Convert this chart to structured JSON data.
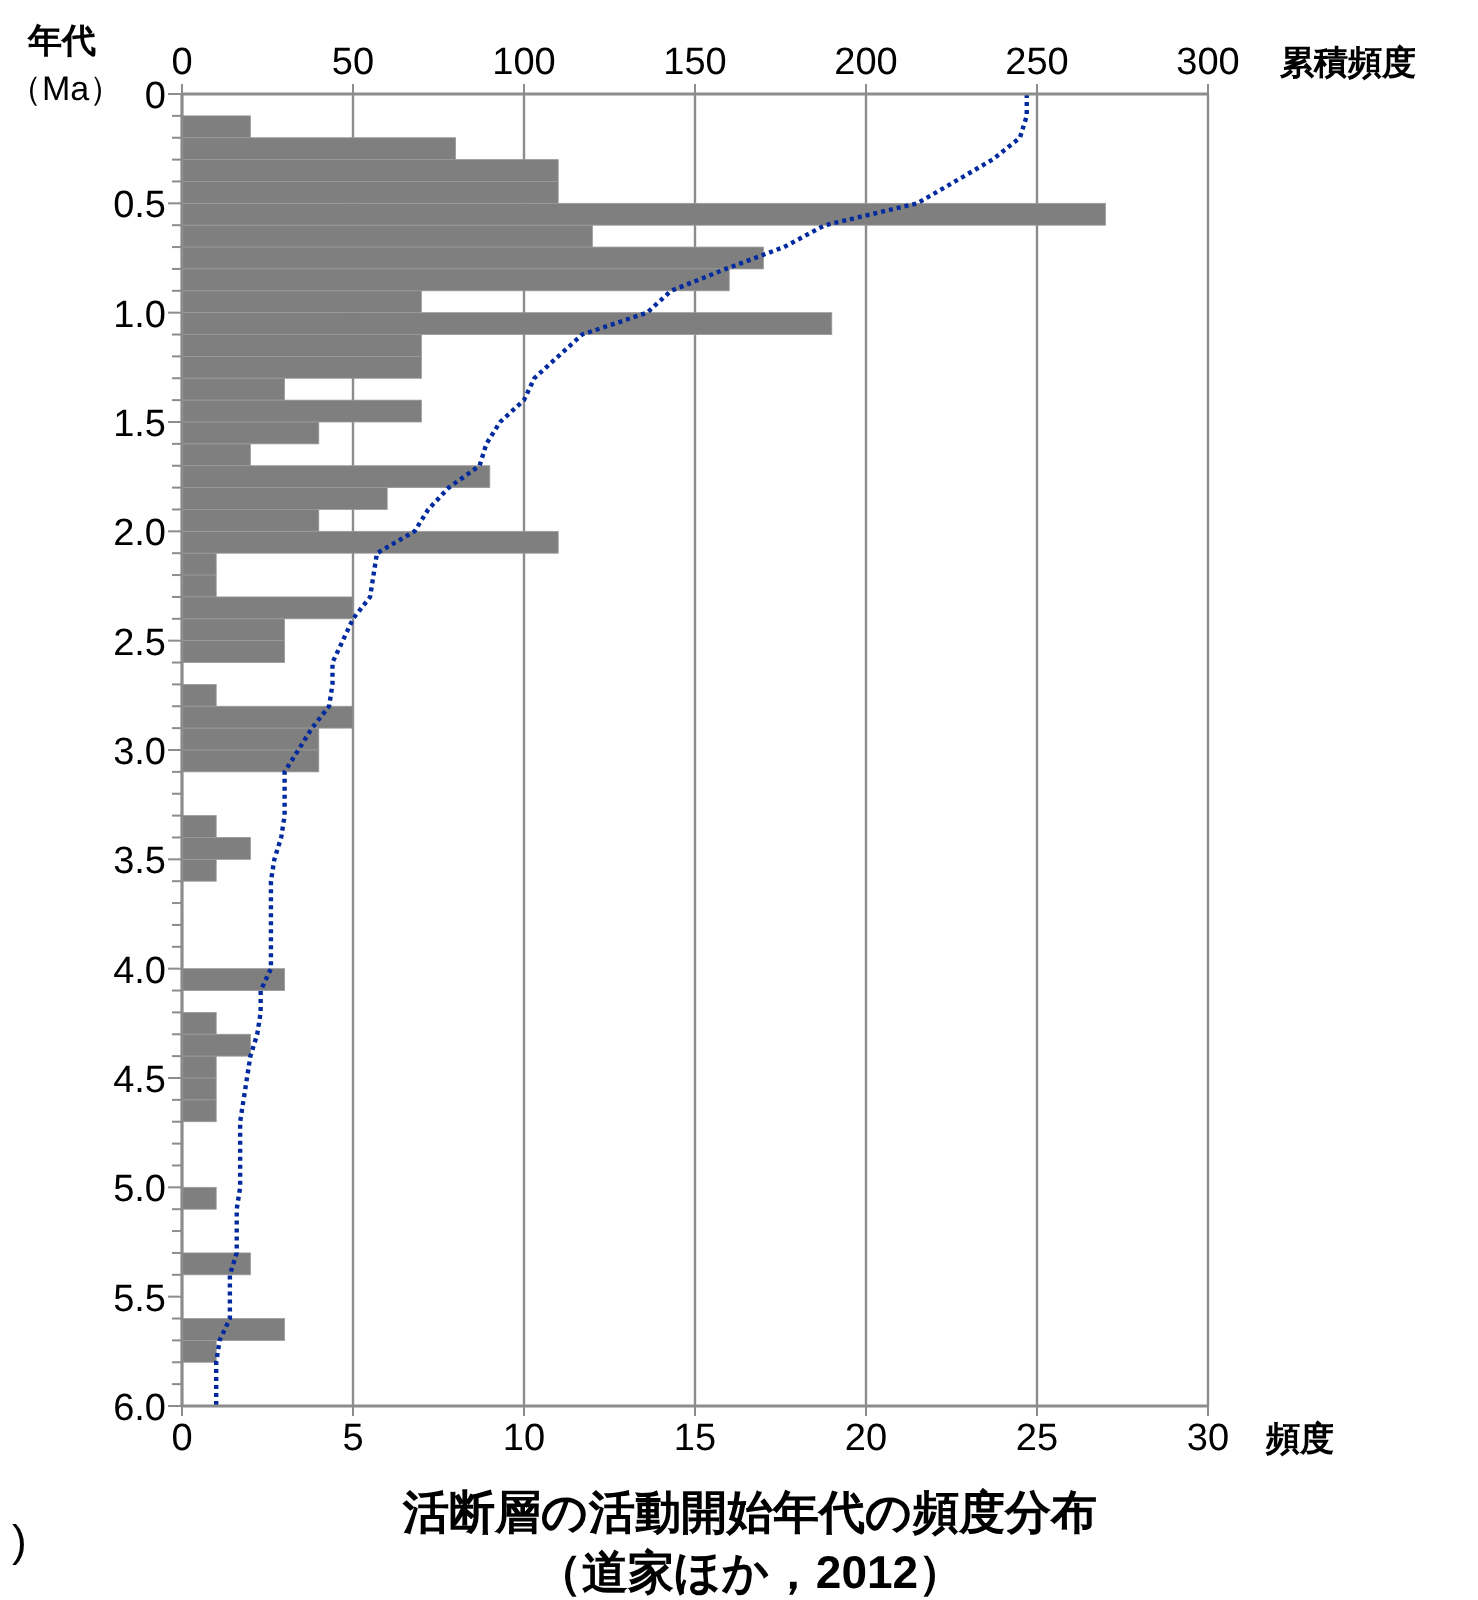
{
  "chart_data": {
    "type": "histogram",
    "orientation": "horizontal",
    "title": "活断層の活動開始年代の頻度分布",
    "subtitle": "（道家ほか，2012）",
    "xlabel": "頻度",
    "x2label": "累積頻度",
    "ylabel": "年代（Ma）",
    "annotations": [
      ")"
    ],
    "bins": [
      0,
      0.1,
      0.2,
      0.3,
      0.4,
      0.5,
      0.6,
      0.7,
      0.8,
      0.9,
      1.0,
      1.1,
      1.2,
      1.3,
      1.4,
      1.5,
      1.6,
      1.7,
      1.8,
      1.9,
      2.0,
      2.1,
      2.2,
      2.3,
      2.4,
      2.5,
      2.6,
      2.7,
      2.8,
      2.9,
      3.0,
      3.1,
      3.2,
      3.3,
      3.4,
      3.5,
      3.6,
      3.7,
      3.8,
      3.9,
      4.0,
      4.1,
      4.2,
      4.3,
      4.4,
      4.5,
      4.6,
      4.7,
      4.8,
      4.9,
      5.0,
      5.1,
      5.2,
      5.3,
      5.4,
      5.5,
      5.6,
      5.7,
      5.8,
      5.9,
      6.0
    ],
    "series": [
      {
        "color": "#7f7f7f",
        "values": [
          0,
          2,
          8,
          11,
          11,
          27,
          12,
          17,
          16,
          7,
          19,
          7,
          7,
          3,
          7,
          4,
          2,
          9,
          6,
          4,
          11,
          1,
          1,
          5,
          3,
          3,
          0,
          1,
          5,
          4,
          4,
          0,
          0,
          1,
          2,
          1,
          0,
          0,
          0,
          0,
          3,
          0,
          1,
          2,
          1,
          1,
          1,
          0,
          0,
          0,
          1,
          0,
          0,
          2,
          0,
          0,
          3,
          1,
          0,
          0
        ]
      },
      {
        "type": "line",
        "axis": "x2",
        "color": "#002a9e",
        "line_style": "dotted",
        "marker": "none",
        "x": [
          0,
          0.1,
          0.2,
          0.3,
          0.4,
          0.5,
          0.6,
          0.7,
          0.8,
          0.9,
          1.0,
          1.1,
          1.2,
          1.3,
          1.4,
          1.5,
          1.6,
          1.7,
          1.8,
          1.9,
          2.0,
          2.1,
          2.2,
          2.3,
          2.4,
          2.5,
          2.6,
          2.7,
          2.8,
          2.9,
          3.0,
          3.1,
          3.2,
          3.3,
          3.4,
          3.5,
          3.6,
          4.0,
          4.1,
          4.2,
          4.3,
          4.4,
          4.5,
          4.6,
          4.7,
          5.0,
          5.1,
          5.3,
          5.4,
          5.6,
          5.7,
          5.8,
          6.0
        ],
        "values": [
          247,
          247,
          245,
          237,
          226,
          215,
          188,
          176,
          159,
          143,
          136,
          117,
          110,
          103,
          100,
          93,
          89,
          87,
          78,
          72,
          68,
          57,
          56,
          55,
          50,
          47,
          44,
          44,
          43,
          38,
          34,
          30,
          30,
          30,
          29,
          27,
          26,
          26,
          23,
          23,
          22,
          20,
          19,
          18,
          17,
          17,
          16,
          16,
          14,
          14,
          11,
          10,
          10
        ]
      }
    ],
    "xlim": [
      0,
      30
    ],
    "xticks": [
      0,
      5,
      10,
      15,
      20,
      25,
      30
    ],
    "x2lim": [
      0,
      300
    ],
    "x2ticks": [
      0,
      50,
      100,
      150,
      200,
      250,
      300
    ],
    "ylim": [
      6,
      0
    ],
    "yticks": [
      0,
      {
        "value": 0.1,
        "label": null
      },
      {
        "value": 0.2,
        "label": null
      },
      {
        "value": 0.3,
        "label": null
      },
      {
        "value": 0.4,
        "label": null
      },
      0.5,
      {
        "value": 0.6,
        "label": null
      },
      {
        "value": 0.7,
        "label": null
      },
      {
        "value": 0.8,
        "label": null
      },
      {
        "value": 0.9,
        "label": null
      },
      {
        "value": 1,
        "label": "1.0"
      },
      {
        "value": 1.1,
        "label": null
      },
      {
        "value": 1.2,
        "label": null
      },
      {
        "value": 1.3,
        "label": null
      },
      {
        "value": 1.4,
        "label": null
      },
      1.5,
      {
        "value": 1.6,
        "label": null
      },
      {
        "value": 1.7,
        "label": null
      },
      {
        "value": 1.8,
        "label": null
      },
      {
        "value": 1.9,
        "label": null
      },
      {
        "value": 2,
        "label": "2.0"
      },
      {
        "value": 2.1,
        "label": null
      },
      {
        "value": 2.2,
        "label": null
      },
      {
        "value": 2.3,
        "label": null
      },
      {
        "value": 2.4,
        "label": null
      },
      2.5,
      {
        "value": 2.6,
        "label": null
      },
      {
        "value": 2.7,
        "label": null
      },
      {
        "value": 2.8,
        "label": null
      },
      {
        "value": 2.9,
        "label": null
      },
      {
        "value": 3,
        "label": "3.0"
      },
      {
        "value": 3.1,
        "label": null
      },
      {
        "value": 3.2,
        "label": null
      },
      {
        "value": 3.3,
        "label": null
      },
      {
        "value": 3.4,
        "label": null
      },
      3.5,
      {
        "value": 3.6,
        "label": null
      },
      {
        "value": 3.7,
        "label": null
      },
      {
        "value": 3.8,
        "label": null
      },
      {
        "value": 3.9,
        "label": null
      },
      {
        "value": 4,
        "label": "4.0"
      },
      {
        "value": 4.1,
        "label": null
      },
      {
        "value": 4.2,
        "label": null
      },
      {
        "value": 4.3,
        "label": null
      },
      {
        "value": 4.4,
        "label": null
      },
      4.5,
      {
        "value": 4.6,
        "label": null
      },
      {
        "value": 4.7,
        "label": null
      },
      {
        "value": 4.8,
        "label": null
      },
      {
        "value": 4.9,
        "label": null
      },
      {
        "value": 5,
        "label": "5.0"
      },
      {
        "value": 5.1,
        "label": null
      },
      {
        "value": 5.2,
        "label": null
      },
      {
        "value": 5.3,
        "label": null
      },
      {
        "value": 5.4,
        "label": null
      },
      5.5,
      {
        "value": 5.6,
        "label": null
      },
      {
        "value": 5.7,
        "label": null
      },
      {
        "value": 5.8,
        "label": null
      },
      {
        "value": 5.9,
        "label": null
      },
      {
        "value": 6,
        "label": "6.0"
      }
    ],
    "grid": "x"
  }
}
